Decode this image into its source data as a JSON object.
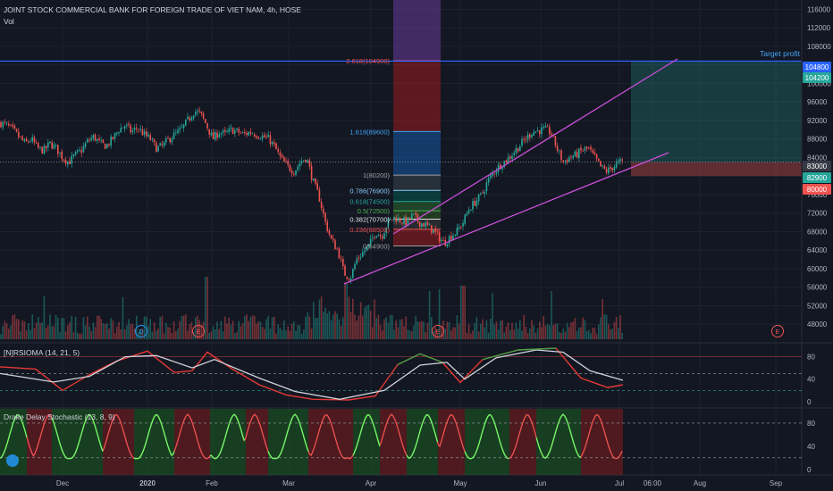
{
  "header": {
    "symbol_title": "JOINT STOCK COMMERCIAL BANK FOR FOREIGN TRADE OF VIET NAM, 4h, HOSE",
    "volume_label": "Vol"
  },
  "colors": {
    "background": "#131722",
    "grid": "#1e2230",
    "up": "#26a69a",
    "down": "#ef5350",
    "channel": "#c94fd6",
    "target_line": "#2962ff",
    "rsi_line_white": "#d1d4dc",
    "stoch_green": "#4caf50",
    "stoch_red": "#f05252"
  },
  "price_axis": {
    "ticks": [
      "116000",
      "112000",
      "108000",
      "104000",
      "100000",
      "96000",
      "92000",
      "88000",
      "84000",
      "80000",
      "76000",
      "72000",
      "68000",
      "64000",
      "60000",
      "56000",
      "52000",
      "48000"
    ],
    "badges": [
      {
        "text": "104800",
        "color": "#2962ff"
      },
      {
        "text": "104200",
        "color": "#26a69a"
      },
      {
        "text": "83000",
        "color": "#363a45"
      },
      {
        "text": "82900",
        "color": "#26a69a"
      },
      {
        "text": "80000",
        "color": "#ef5350"
      }
    ]
  },
  "annotations": {
    "target_profit": "Target profit",
    "event_markers": [
      "D",
      "E",
      "E",
      "E"
    ]
  },
  "fib_levels": [
    {
      "label": "2.618(104900)",
      "color": "#ef5350"
    },
    {
      "label": "1.618(89600)",
      "color": "#42a5f5"
    },
    {
      "label": "1(80200)",
      "color": "#9e9e9e"
    },
    {
      "label": "0.786(76900)",
      "color": "#90caf9"
    },
    {
      "label": "0.618(74500)",
      "color": "#26a69a"
    },
    {
      "label": "0.5(72500)",
      "color": "#4caf50"
    },
    {
      "label": "0.382(70700)",
      "color": "#e0e0e0"
    },
    {
      "label": "0.236(68500)",
      "color": "#ef5350"
    },
    {
      "label": "0(64900)",
      "color": "#9e9e9e"
    }
  ],
  "rsi_panel": {
    "title": "[N]RSIOMA (14, 21, 5)",
    "ticks": [
      "80",
      "40",
      "0"
    ]
  },
  "stoch_panel": {
    "title": "Drake Delay Stochastic (13, 8, 9)",
    "ticks": [
      "80",
      "40",
      "0"
    ]
  },
  "time_axis": {
    "labels": [
      "Dec",
      "2020",
      "Feb",
      "Mar",
      "Apr",
      "May",
      "Jun",
      "Jul",
      "06:00",
      "Aug",
      "Sep"
    ]
  },
  "chart_data": {
    "type": "candlestick",
    "title": "JOINT STOCK COMMERCIAL BANK FOR FOREIGN TRADE OF VIET NAM, 4h, HOSE",
    "ylim": [
      44000,
      118000
    ],
    "price_path": [
      [
        0,
        91500
      ],
      [
        7,
        91000
      ],
      [
        14,
        90000
      ],
      [
        21,
        88500
      ],
      [
        28,
        87000
      ],
      [
        35,
        88000
      ],
      [
        42,
        86000
      ],
      [
        49,
        85500
      ],
      [
        56,
        87000
      ],
      [
        63,
        86000
      ],
      [
        70,
        84000
      ],
      [
        77,
        83000
      ],
      [
        84,
        84500
      ],
      [
        91,
        85500
      ],
      [
        98,
        87500
      ],
      [
        105,
        88500
      ],
      [
        112,
        87000
      ],
      [
        119,
        86500
      ],
      [
        126,
        88000
      ],
      [
        133,
        90000
      ],
      [
        140,
        91000
      ],
      [
        147,
        89500
      ],
      [
        154,
        90500
      ],
      [
        161,
        89000
      ],
      [
        168,
        88000
      ],
      [
        175,
        86000
      ],
      [
        182,
        86500
      ],
      [
        189,
        88000
      ],
      [
        196,
        89000
      ],
      [
        203,
        90000
      ],
      [
        210,
        92000
      ],
      [
        217,
        94000
      ],
      [
        224,
        93500
      ],
      [
        231,
        91000
      ],
      [
        238,
        88000
      ],
      [
        245,
        89500
      ],
      [
        252,
        89000
      ],
      [
        259,
        90000
      ],
      [
        266,
        89500
      ],
      [
        273,
        89000
      ],
      [
        280,
        89500
      ],
      [
        287,
        89000
      ],
      [
        294,
        88500
      ],
      [
        301,
        88000
      ],
      [
        308,
        86000
      ],
      [
        315,
        83500
      ],
      [
        322,
        82000
      ],
      [
        329,
        81000
      ],
      [
        336,
        83000
      ],
      [
        343,
        84000
      ],
      [
        350,
        79000
      ],
      [
        357,
        75500
      ],
      [
        364,
        70000
      ],
      [
        371,
        66000
      ],
      [
        378,
        64000
      ],
      [
        385,
        59000
      ],
      [
        392,
        58000
      ],
      [
        399,
        62000
      ],
      [
        406,
        63500
      ],
      [
        413,
        65000
      ],
      [
        420,
        68000
      ],
      [
        427,
        67000
      ],
      [
        434,
        70000
      ],
      [
        441,
        71000
      ],
      [
        448,
        70500
      ],
      [
        455,
        70000
      ],
      [
        462,
        71500
      ],
      [
        469,
        70000
      ],
      [
        476,
        69500
      ],
      [
        483,
        68500
      ],
      [
        490,
        67000
      ],
      [
        497,
        65500
      ],
      [
        504,
        67000
      ],
      [
        511,
        68000
      ],
      [
        518,
        70000
      ],
      [
        525,
        73000
      ],
      [
        532,
        74500
      ],
      [
        539,
        76000
      ],
      [
        546,
        79000
      ],
      [
        553,
        81000
      ],
      [
        560,
        82500
      ],
      [
        567,
        83500
      ],
      [
        574,
        85000
      ],
      [
        581,
        86500
      ],
      [
        588,
        88000
      ],
      [
        595,
        89500
      ],
      [
        602,
        89800
      ],
      [
        609,
        90000
      ],
      [
        616,
        89500
      ],
      [
        623,
        86000
      ],
      [
        630,
        83000
      ],
      [
        637,
        84000
      ],
      [
        644,
        84500
      ],
      [
        651,
        85500
      ],
      [
        658,
        86000
      ],
      [
        665,
        84000
      ],
      [
        672,
        82000
      ],
      [
        679,
        81000
      ],
      [
        686,
        82000
      ],
      [
        693,
        83000
      ]
    ],
    "fib_levels": [
      {
        "ratio": 2.618,
        "price": 104900
      },
      {
        "ratio": 1.618,
        "price": 89600
      },
      {
        "ratio": 1,
        "price": 80200
      },
      {
        "ratio": 0.786,
        "price": 76900
      },
      {
        "ratio": 0.618,
        "price": 74500
      },
      {
        "ratio": 0.5,
        "price": 72500
      },
      {
        "ratio": 0.382,
        "price": 70700
      },
      {
        "ratio": 0.236,
        "price": 68500
      },
      {
        "ratio": 0,
        "price": 64900
      }
    ],
    "trade": {
      "target": 104800,
      "entry": 83000,
      "stop": 80000
    },
    "current_price": 82900,
    "rsi_ylim": [
      -5,
      100
    ],
    "stoch_ylim": [
      -5,
      100
    ]
  }
}
